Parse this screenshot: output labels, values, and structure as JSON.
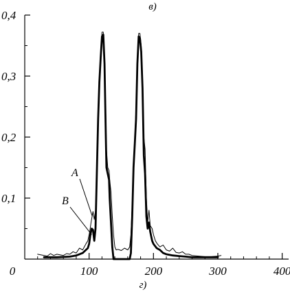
{
  "chart_data": {
    "type": "line",
    "title": "в)",
    "caption": "г)",
    "xlabel": "",
    "ylabel": "",
    "xlim": [
      0,
      410
    ],
    "ylim": [
      0,
      0.4
    ],
    "x_ticks": [
      "0",
      "100",
      "200",
      "300",
      "400"
    ],
    "x_tick_values": [
      0,
      100,
      200,
      300,
      400
    ],
    "y_ticks": [
      "0,1",
      "0,2",
      "0,3",
      "0,4"
    ],
    "y_tick_values": [
      0.1,
      0.2,
      0.3,
      0.4
    ],
    "grid": false,
    "legend": "none",
    "series": [
      {
        "name": "A",
        "style": "thin",
        "points": [
          [
            20,
            0.008
          ],
          [
            35,
            0.005
          ],
          [
            40,
            0.009
          ],
          [
            45,
            0.006
          ],
          [
            50,
            0.008
          ],
          [
            60,
            0.006
          ],
          [
            65,
            0.009
          ],
          [
            70,
            0.008
          ],
          [
            75,
            0.012
          ],
          [
            80,
            0.01
          ],
          [
            85,
            0.018
          ],
          [
            90,
            0.015
          ],
          [
            95,
            0.025
          ],
          [
            98,
            0.03
          ],
          [
            101,
            0.045
          ],
          [
            103,
            0.06
          ],
          [
            106,
            0.078
          ],
          [
            108,
            0.065
          ],
          [
            110,
            0.08
          ],
          [
            112,
            0.15
          ],
          [
            114,
            0.25
          ],
          [
            116,
            0.3
          ],
          [
            118,
            0.34
          ],
          [
            120,
            0.372
          ],
          [
            122,
            0.372
          ],
          [
            124,
            0.33
          ],
          [
            126,
            0.24
          ],
          [
            127,
            0.18
          ],
          [
            129,
            0.15
          ],
          [
            131,
            0.145
          ],
          [
            132,
            0.13
          ],
          [
            134,
            0.11
          ],
          [
            136,
            0.07
          ],
          [
            138,
            0.04
          ],
          [
            140,
            0.02
          ],
          [
            142,
            0.015
          ],
          [
            145,
            0.016
          ],
          [
            150,
            0.014
          ],
          [
            155,
            0.018
          ],
          [
            160,
            0.015
          ],
          [
            163,
            0.02
          ],
          [
            165,
            0.04
          ],
          [
            167,
            0.09
          ],
          [
            169,
            0.16
          ],
          [
            171,
            0.2
          ],
          [
            173,
            0.25
          ],
          [
            175,
            0.32
          ],
          [
            177,
            0.37
          ],
          [
            179,
            0.37
          ],
          [
            181,
            0.35
          ],
          [
            183,
            0.3
          ],
          [
            185,
            0.2
          ],
          [
            187,
            0.18
          ],
          [
            189,
            0.1
          ],
          [
            191,
            0.06
          ],
          [
            193,
            0.08
          ],
          [
            195,
            0.055
          ],
          [
            198,
            0.05
          ],
          [
            200,
            0.04
          ],
          [
            203,
            0.03
          ],
          [
            206,
            0.025
          ],
          [
            210,
            0.02
          ],
          [
            215,
            0.023
          ],
          [
            220,
            0.015
          ],
          [
            225,
            0.013
          ],
          [
            230,
            0.018
          ],
          [
            235,
            0.011
          ],
          [
            240,
            0.01
          ],
          [
            245,
            0.012
          ],
          [
            250,
            0.008
          ],
          [
            255,
            0.008
          ],
          [
            260,
            0.006
          ],
          [
            270,
            0.005
          ],
          [
            280,
            0.004
          ],
          [
            290,
            0.004
          ],
          [
            300,
            0.005
          ],
          [
            305,
            0.006
          ]
        ]
      },
      {
        "name": "B",
        "style": "thick",
        "points": [
          [
            30,
            0.003
          ],
          [
            50,
            0.003
          ],
          [
            70,
            0.004
          ],
          [
            80,
            0.006
          ],
          [
            85,
            0.008
          ],
          [
            90,
            0.01
          ],
          [
            95,
            0.015
          ],
          [
            98,
            0.018
          ],
          [
            100,
            0.025
          ],
          [
            102,
            0.04
          ],
          [
            104,
            0.05
          ],
          [
            106,
            0.048
          ],
          [
            108,
            0.03
          ],
          [
            110,
            0.05
          ],
          [
            112,
            0.14
          ],
          [
            114,
            0.23
          ],
          [
            116,
            0.29
          ],
          [
            118,
            0.33
          ],
          [
            120,
            0.365
          ],
          [
            122,
            0.368
          ],
          [
            124,
            0.32
          ],
          [
            126,
            0.2
          ],
          [
            127,
            0.15
          ],
          [
            129,
            0.14
          ],
          [
            131,
            0.13
          ],
          [
            132,
            0.1
          ],
          [
            134,
            0.06
          ],
          [
            136,
            0.02
          ],
          [
            138,
            0.0
          ],
          [
            145,
            0.0
          ],
          [
            155,
            0.0
          ],
          [
            163,
            0.0
          ],
          [
            165,
            0.01
          ],
          [
            167,
            0.07
          ],
          [
            169,
            0.15
          ],
          [
            171,
            0.19
          ],
          [
            173,
            0.23
          ],
          [
            175,
            0.32
          ],
          [
            177,
            0.365
          ],
          [
            179,
            0.362
          ],
          [
            181,
            0.34
          ],
          [
            183,
            0.28
          ],
          [
            185,
            0.17
          ],
          [
            187,
            0.14
          ],
          [
            189,
            0.07
          ],
          [
            191,
            0.05
          ],
          [
            193,
            0.06
          ],
          [
            195,
            0.045
          ],
          [
            198,
            0.03
          ],
          [
            200,
            0.025
          ],
          [
            205,
            0.018
          ],
          [
            210,
            0.015
          ],
          [
            215,
            0.01
          ],
          [
            220,
            0.008
          ],
          [
            230,
            0.006
          ],
          [
            240,
            0.005
          ],
          [
            250,
            0.004
          ],
          [
            260,
            0.003
          ],
          [
            280,
            0.003
          ],
          [
            300,
            0.003
          ]
        ]
      }
    ],
    "annotations": [
      {
        "text": "A",
        "series": "A",
        "point": [
          105,
          0.07
        ]
      },
      {
        "text": "B",
        "series": "B",
        "point": [
          104,
          0.04
        ]
      }
    ]
  },
  "colors": {
    "line": "#000000",
    "background": "#ffffff"
  }
}
